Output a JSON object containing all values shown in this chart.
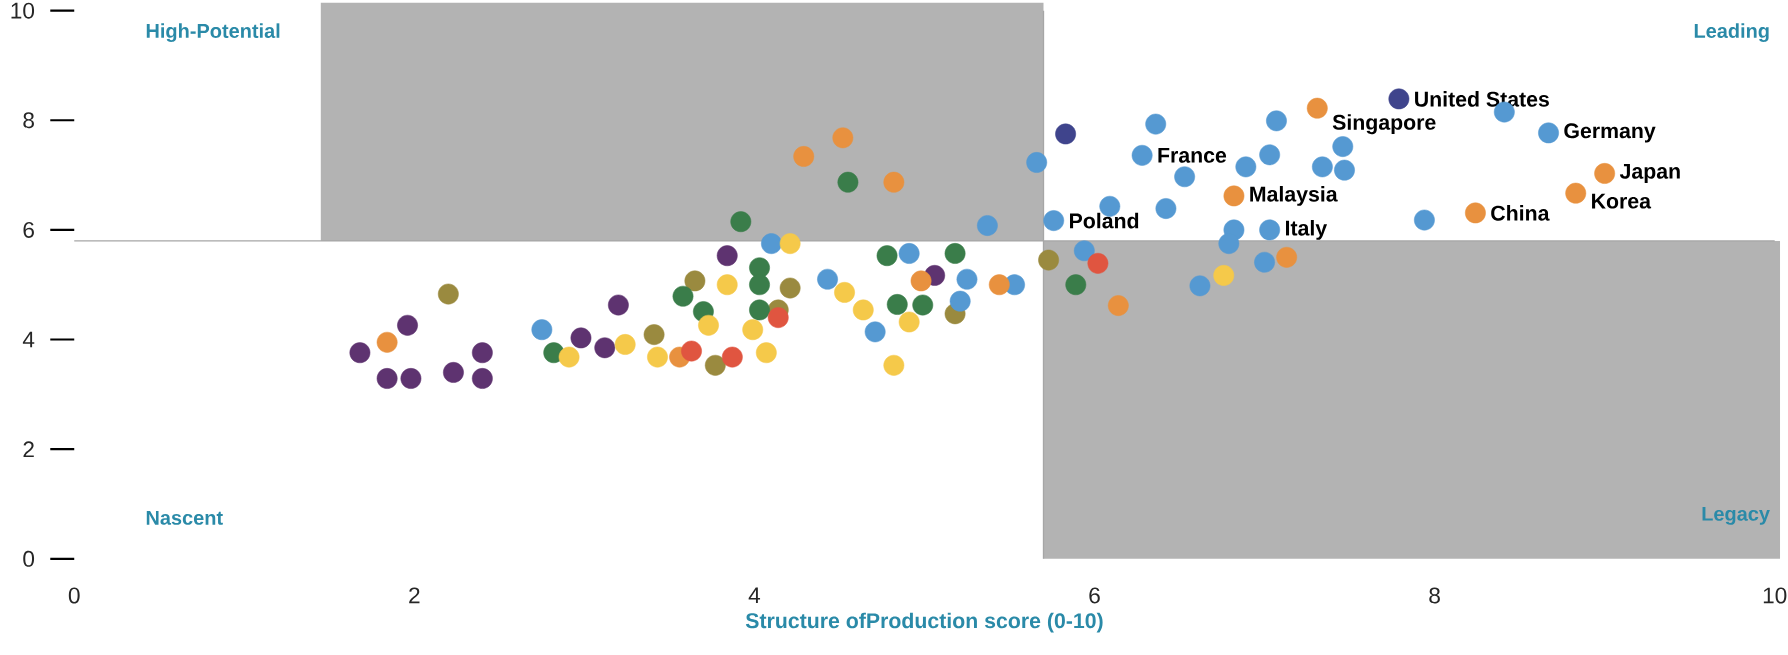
{
  "chart_data": {
    "type": "scatter",
    "xlabel": "Structure ofProduction score (0-10)",
    "xlim": [
      0,
      10
    ],
    "ylim": [
      0,
      10
    ],
    "xticks": [
      0,
      2,
      4,
      6,
      8,
      10
    ],
    "yticks": [
      0,
      2,
      4,
      6,
      8,
      10
    ],
    "grid": false,
    "ref_lines": [
      {
        "axis": "x",
        "value": 5.7,
        "color": "#a6a6a6"
      },
      {
        "axis": "y",
        "value": 5.8,
        "color": "#a6a6a6"
      }
    ],
    "series": [
      {
        "color": "#5e3370",
        "x": [
          3.84,
          3.2,
          1.96,
          2.98,
          3.12,
          1.68,
          2.4,
          1.84,
          1.98,
          2.23,
          2.4,
          5.06
        ],
        "values": [
          5.53,
          4.63,
          4.26,
          4.03,
          3.85,
          3.76,
          3.76,
          3.29,
          3.29,
          3.4,
          3.29,
          5.17
        ]
      },
      {
        "color": "#9a8a3f",
        "x": [
          3.65,
          4.21,
          2.2,
          4.14,
          3.41,
          3.77,
          5.73,
          5.18
        ],
        "values": [
          5.07,
          4.94,
          4.83,
          4.54,
          4.09,
          3.53,
          5.45,
          4.47
        ]
      },
      {
        "color": "#3a7d4a",
        "x": [
          3.92,
          4.03,
          4.03,
          3.58,
          3.7,
          4.03,
          2.82,
          4.55,
          5.89,
          4.78,
          5.18,
          4.84,
          4.99
        ],
        "values": [
          6.15,
          5.31,
          5.0,
          4.79,
          4.51,
          4.54,
          3.76,
          6.87,
          5.0,
          5.53,
          5.57,
          4.64,
          4.63
        ]
      },
      {
        "color": "#5599d2",
        "x": [
          4.1,
          2.75,
          5.37,
          5.76,
          6.09,
          6.42,
          6.53,
          6.82,
          6.79,
          7.03,
          7.0,
          6.62,
          5.94,
          4.91,
          4.43,
          5.25,
          5.53,
          5.21,
          4.71,
          5.66,
          6.36,
          7.07,
          7.46,
          7.03,
          6.89,
          7.34,
          7.47,
          6.28,
          7.94,
          8.41,
          8.67
        ],
        "values": [
          5.75,
          4.18,
          6.08,
          6.17,
          6.43,
          6.39,
          6.97,
          6.0,
          5.75,
          6.0,
          5.41,
          4.98,
          5.62,
          5.57,
          5.1,
          5.1,
          5.0,
          4.7,
          4.14,
          7.23,
          7.93,
          7.99,
          7.52,
          7.37,
          7.15,
          7.15,
          7.09,
          7.36,
          6.18,
          8.15,
          7.77
        ]
      },
      {
        "color": "#f5c94a",
        "x": [
          4.21,
          3.84,
          3.73,
          3.99,
          3.24,
          4.07,
          2.91,
          3.43,
          6.76,
          4.53,
          4.64,
          4.91,
          4.82
        ],
        "values": [
          5.75,
          5.0,
          4.26,
          4.18,
          3.91,
          3.76,
          3.68,
          3.68,
          5.17,
          4.86,
          4.54,
          4.32,
          3.53
        ]
      },
      {
        "color": "#e8913f",
        "x": [
          1.84,
          3.56,
          4.82,
          6.82,
          7.13,
          6.14,
          4.98,
          5.44,
          4.29,
          4.52,
          7.31,
          9.0,
          8.83,
          8.24
        ],
        "values": [
          3.95,
          3.68,
          6.87,
          6.62,
          5.5,
          4.62,
          5.07,
          5.0,
          7.34,
          7.68,
          8.22,
          7.03,
          6.67,
          6.31
        ]
      },
      {
        "color": "#e05540",
        "x": [
          4.14,
          3.63,
          3.87,
          6.02
        ],
        "values": [
          4.4,
          3.79,
          3.68,
          5.39
        ]
      },
      {
        "color": "#3f448c",
        "x": [
          5.83,
          7.79
        ],
        "values": [
          7.75,
          8.39
        ]
      }
    ],
    "annotations": [
      "High-Potential",
      "Leading",
      "Nascent",
      "Legacy",
      {
        "text": "United States",
        "x": 7.79,
        "y": 8.39
      },
      {
        "text": "Singapore",
        "x": 7.31,
        "y": 8.22
      },
      {
        "text": "Germany",
        "x": 8.67,
        "y": 7.77
      },
      {
        "text": "France",
        "x": 6.28,
        "y": 7.36
      },
      {
        "text": "Malaysia",
        "x": 6.82,
        "y": 6.62
      },
      {
        "text": "Japan",
        "x": 9.0,
        "y": 7.03
      },
      {
        "text": "Korea",
        "x": 8.83,
        "y": 6.67
      },
      {
        "text": "China",
        "x": 8.24,
        "y": 6.31
      },
      {
        "text": "Poland",
        "x": 5.76,
        "y": 6.17
      },
      {
        "text": "Italy",
        "x": 7.03,
        "y": 6.0
      }
    ]
  }
}
